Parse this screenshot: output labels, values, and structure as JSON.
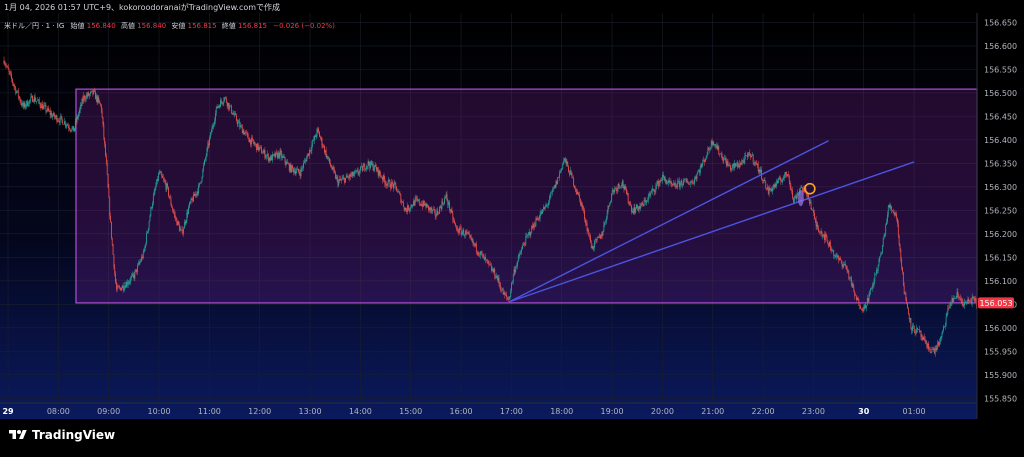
{
  "header": {
    "text": "1月 04, 2026 01:57 UTC+9、kokoroodoranaiがTradingView.comで作成"
  },
  "legend": {
    "symbol": "米ドル／円 · 1 · IG",
    "open_label": "始値",
    "open_value": "156.840",
    "high_label": "高値",
    "high_value": "156.840",
    "low_label": "安値",
    "low_value": "156.815",
    "close_label": "終値",
    "close_value": "156.815",
    "change": "−0.026 (−0.02%)"
  },
  "price_label": {
    "value": "156.053",
    "price": 156.053
  },
  "footer": {
    "logo_text": "TradingView"
  },
  "colors": {
    "up": "#26a69a",
    "down": "#ef5350",
    "box_border": "#b04fd8",
    "trend": "#4a55e0",
    "price_label_bg": "#f23645"
  },
  "chart_data": {
    "type": "candlestick",
    "title": "",
    "xlabel": "",
    "ylabel": "",
    "ylim": [
      155.84,
      156.67
    ],
    "y_ticks": [
      "156.650",
      "156.600",
      "156.550",
      "156.500",
      "156.450",
      "156.400",
      "156.350",
      "156.300",
      "156.250",
      "156.200",
      "156.150",
      "156.100",
      "156.050",
      "156.000",
      "155.950",
      "155.900",
      "155.850"
    ],
    "x_ticks": [
      "29",
      "08:00",
      "09:00",
      "10:00",
      "11:00",
      "12:00",
      "13:00",
      "14:00",
      "15:00",
      "16:00",
      "17:00",
      "18:00",
      "19:00",
      "20:00",
      "21:00",
      "22:00",
      "23:00",
      "30",
      "01:00"
    ],
    "x_tick_hours": [
      7.0,
      8.0,
      9.0,
      10.0,
      11.0,
      12.0,
      13.0,
      14.0,
      15.0,
      16.0,
      17.0,
      18.0,
      19.0,
      20.0,
      21.0,
      22.0,
      23.0,
      24.0,
      25.0
    ],
    "x_range_hours": [
      6.92,
      26.25
    ],
    "price_path": [
      [
        6.92,
        156.57
      ],
      [
        7.1,
        156.52
      ],
      [
        7.3,
        156.47
      ],
      [
        7.5,
        156.49
      ],
      [
        7.7,
        156.47
      ],
      [
        7.9,
        156.45
      ],
      [
        8.1,
        156.44
      ],
      [
        8.3,
        156.42
      ],
      [
        8.5,
        156.49
      ],
      [
        8.7,
        156.5
      ],
      [
        8.85,
        156.47
      ],
      [
        8.95,
        156.35
      ],
      [
        9.05,
        156.2
      ],
      [
        9.15,
        156.08
      ],
      [
        9.3,
        156.09
      ],
      [
        9.5,
        156.11
      ],
      [
        9.7,
        156.16
      ],
      [
        9.85,
        156.26
      ],
      [
        10.0,
        156.33
      ],
      [
        10.15,
        156.3
      ],
      [
        10.3,
        156.24
      ],
      [
        10.45,
        156.2
      ],
      [
        10.6,
        156.26
      ],
      [
        10.8,
        156.3
      ],
      [
        11.0,
        156.4
      ],
      [
        11.15,
        156.47
      ],
      [
        11.3,
        156.49
      ],
      [
        11.45,
        156.46
      ],
      [
        11.6,
        156.43
      ],
      [
        11.8,
        156.4
      ],
      [
        12.0,
        156.38
      ],
      [
        12.2,
        156.36
      ],
      [
        12.4,
        156.37
      ],
      [
        12.6,
        156.34
      ],
      [
        12.8,
        156.33
      ],
      [
        13.0,
        156.38
      ],
      [
        13.15,
        156.42
      ],
      [
        13.35,
        156.36
      ],
      [
        13.55,
        156.31
      ],
      [
        13.75,
        156.32
      ],
      [
        13.95,
        156.33
      ],
      [
        14.15,
        156.35
      ],
      [
        14.3,
        156.34
      ],
      [
        14.5,
        156.31
      ],
      [
        14.7,
        156.3
      ],
      [
        14.9,
        156.25
      ],
      [
        15.1,
        156.27
      ],
      [
        15.3,
        156.26
      ],
      [
        15.5,
        156.24
      ],
      [
        15.7,
        156.28
      ],
      [
        15.9,
        156.21
      ],
      [
        16.1,
        156.2
      ],
      [
        16.3,
        156.17
      ],
      [
        16.5,
        156.14
      ],
      [
        16.7,
        156.11
      ],
      [
        16.85,
        156.07
      ],
      [
        16.95,
        156.06
      ],
      [
        17.05,
        156.12
      ],
      [
        17.25,
        156.18
      ],
      [
        17.5,
        156.23
      ],
      [
        17.7,
        156.26
      ],
      [
        17.9,
        156.31
      ],
      [
        18.05,
        156.36
      ],
      [
        18.2,
        156.32
      ],
      [
        18.4,
        156.26
      ],
      [
        18.6,
        156.17
      ],
      [
        18.8,
        156.2
      ],
      [
        19.0,
        156.29
      ],
      [
        19.2,
        156.31
      ],
      [
        19.4,
        156.25
      ],
      [
        19.6,
        156.26
      ],
      [
        19.8,
        156.29
      ],
      [
        20.0,
        156.32
      ],
      [
        20.2,
        156.3
      ],
      [
        20.4,
        156.31
      ],
      [
        20.6,
        156.31
      ],
      [
        20.8,
        156.35
      ],
      [
        21.0,
        156.4
      ],
      [
        21.15,
        156.37
      ],
      [
        21.35,
        156.34
      ],
      [
        21.55,
        156.35
      ],
      [
        21.75,
        156.37
      ],
      [
        21.95,
        156.33
      ],
      [
        22.1,
        156.29
      ],
      [
        22.3,
        156.31
      ],
      [
        22.5,
        156.33
      ],
      [
        22.6,
        156.27
      ],
      [
        22.75,
        156.3
      ],
      [
        22.9,
        156.28
      ],
      [
        23.05,
        156.22
      ],
      [
        23.25,
        156.19
      ],
      [
        23.45,
        156.15
      ],
      [
        23.65,
        156.13
      ],
      [
        23.85,
        156.06
      ],
      [
        24.0,
        156.04
      ],
      [
        24.15,
        156.08
      ],
      [
        24.35,
        156.16
      ],
      [
        24.5,
        156.26
      ],
      [
        24.65,
        156.24
      ],
      [
        24.8,
        156.08
      ],
      [
        24.95,
        156.0
      ],
      [
        25.1,
        155.99
      ],
      [
        25.25,
        155.96
      ],
      [
        25.4,
        155.95
      ],
      [
        25.55,
        155.98
      ],
      [
        25.7,
        156.05
      ],
      [
        25.85,
        156.07
      ],
      [
        26.0,
        156.05
      ],
      [
        26.15,
        156.06
      ],
      [
        26.25,
        156.053
      ]
    ],
    "rectangle": {
      "x_start": 8.35,
      "x_end": 26.25,
      "y_top": 156.508,
      "y_bottom": 156.053
    },
    "trendlines": [
      {
        "x1": 16.95,
        "y1": 156.055,
        "x2": 23.3,
        "y2": 156.398
      },
      {
        "x1": 16.95,
        "y1": 156.055,
        "x2": 25.0,
        "y2": 156.353
      }
    ],
    "markers": [
      {
        "shape": "circle",
        "x": 22.93,
        "y": 156.296,
        "color": "#f5a623"
      },
      {
        "shape": "ellipse",
        "x": 22.75,
        "y": 156.276,
        "color": "#9a7be8"
      }
    ],
    "price_line": 156.053
  }
}
